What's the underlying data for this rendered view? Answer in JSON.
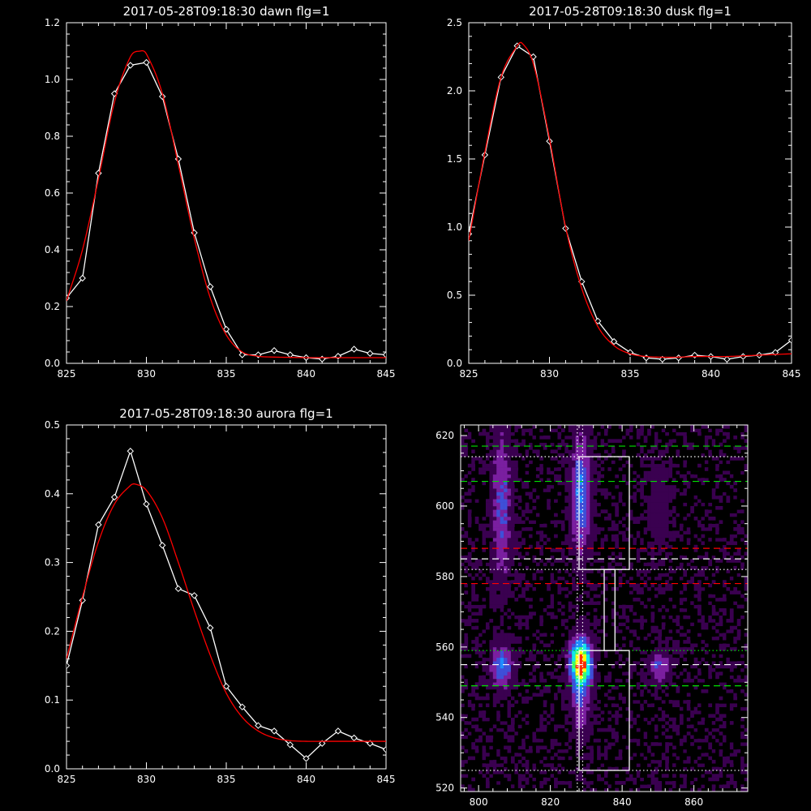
{
  "chart_data": [
    {
      "type": "line",
      "title": "2017-05-28T09:18:30 dawn flg=1",
      "xlabel": "",
      "ylabel": "",
      "xlim": [
        825,
        845
      ],
      "ylim": [
        0,
        1.2
      ],
      "xticks": [
        "825",
        "830",
        "835",
        "840",
        "845"
      ],
      "yticks": [
        "0.0",
        "0.2",
        "0.4",
        "0.6",
        "0.8",
        "1.0",
        "1.2"
      ],
      "series": [
        {
          "color": "#ffffff",
          "markers": "diamond",
          "x": [
            825,
            826,
            827,
            828,
            829,
            830,
            831,
            832,
            833,
            834,
            835,
            836,
            837,
            838,
            839,
            840,
            841,
            842,
            843,
            844,
            845
          ],
          "y": [
            0.23,
            0.3,
            0.67,
            0.95,
            1.05,
            1.06,
            0.94,
            0.72,
            0.46,
            0.27,
            0.12,
            0.03,
            0.03,
            0.045,
            0.03,
            0.02,
            0.015,
            0.025,
            0.05,
            0.035,
            0.03
          ]
        },
        {
          "color": "#ff0000",
          "markers": "none",
          "x": [
            825,
            826,
            827,
            828,
            829,
            829.6,
            830,
            831,
            832,
            833,
            834,
            835,
            836,
            837,
            838,
            839,
            840,
            841,
            842,
            843,
            844,
            845
          ],
          "y": [
            0.22,
            0.4,
            0.65,
            0.92,
            1.08,
            1.1,
            1.09,
            0.95,
            0.7,
            0.44,
            0.23,
            0.1,
            0.04,
            0.025,
            0.022,
            0.021,
            0.02,
            0.02,
            0.02,
            0.02,
            0.02,
            0.02
          ]
        }
      ]
    },
    {
      "type": "line",
      "title": "2017-05-28T09:18:30 dusk flg=1",
      "xlabel": "",
      "ylabel": "",
      "xlim": [
        825,
        845
      ],
      "ylim": [
        0,
        2.5
      ],
      "xticks": [
        "825",
        "830",
        "835",
        "840",
        "845"
      ],
      "yticks": [
        "0.0",
        "0.5",
        "1.0",
        "1.5",
        "2.0",
        "2.5"
      ],
      "series": [
        {
          "color": "#ffffff",
          "markers": "diamond",
          "x": [
            825,
            826,
            827,
            828,
            829,
            830,
            831,
            832,
            833,
            834,
            835,
            836,
            837,
            838,
            839,
            840,
            841,
            842,
            843,
            844,
            845
          ],
          "y": [
            0.95,
            1.53,
            2.1,
            2.33,
            2.25,
            1.63,
            0.99,
            0.6,
            0.31,
            0.16,
            0.08,
            0.04,
            0.03,
            0.04,
            0.06,
            0.05,
            0.03,
            0.05,
            0.06,
            0.08,
            0.17
          ]
        },
        {
          "color": "#ff0000",
          "markers": "none",
          "x": [
            825,
            826,
            827,
            828,
            828.3,
            829,
            830,
            831,
            832,
            833,
            834,
            835,
            836,
            837,
            838,
            839,
            840,
            841,
            842,
            843,
            844,
            845
          ],
          "y": [
            0.9,
            1.55,
            2.1,
            2.33,
            2.35,
            2.2,
            1.65,
            1.0,
            0.55,
            0.27,
            0.13,
            0.07,
            0.05,
            0.045,
            0.045,
            0.05,
            0.05,
            0.05,
            0.055,
            0.06,
            0.065,
            0.07
          ]
        }
      ]
    },
    {
      "type": "line",
      "title": "2017-05-28T09:18:30 aurora flg=1",
      "xlabel": "",
      "ylabel": "",
      "xlim": [
        825,
        845
      ],
      "ylim": [
        0,
        0.5
      ],
      "xticks": [
        "825",
        "830",
        "835",
        "840",
        "845"
      ],
      "yticks": [
        "0.0",
        "0.1",
        "0.2",
        "0.3",
        "0.4",
        "0.5"
      ],
      "series": [
        {
          "color": "#ffffff",
          "markers": "diamond",
          "x": [
            825,
            826,
            827,
            828,
            829,
            830,
            831,
            832,
            833,
            834,
            835,
            836,
            837,
            838,
            839,
            840,
            841,
            842,
            843,
            844,
            845
          ],
          "y": [
            0.15,
            0.245,
            0.355,
            0.395,
            0.462,
            0.385,
            0.325,
            0.262,
            0.252,
            0.205,
            0.12,
            0.09,
            0.063,
            0.055,
            0.035,
            0.015,
            0.037,
            0.055,
            0.045,
            0.037,
            0.028
          ]
        },
        {
          "color": "#ff0000",
          "markers": "none",
          "x": [
            825,
            826,
            827,
            828,
            829,
            829.3,
            830,
            831,
            832,
            833,
            834,
            835,
            836,
            837,
            838,
            839,
            840,
            841,
            842,
            843,
            844,
            845
          ],
          "y": [
            0.16,
            0.25,
            0.33,
            0.385,
            0.412,
            0.414,
            0.405,
            0.365,
            0.3,
            0.23,
            0.165,
            0.11,
            0.075,
            0.055,
            0.045,
            0.041,
            0.04,
            0.04,
            0.04,
            0.04,
            0.04,
            0.04
          ]
        }
      ]
    },
    {
      "type": "heatmap",
      "title": "",
      "xlabel": "",
      "ylabel": "",
      "xlim": [
        795,
        875
      ],
      "ylim": [
        519,
        623
      ],
      "xticks": [
        "800",
        "820",
        "840",
        "860"
      ],
      "yticks": [
        "520",
        "540",
        "560",
        "580",
        "600",
        "620"
      ],
      "colorscale": [
        "#000000",
        "#3a0050",
        "#7a1fa0",
        "#3f4fd8",
        "#1e8cff",
        "#11e8e8",
        "#3cff6a",
        "#ffff00",
        "#ff2a00"
      ],
      "blobs": [
        {
          "x": 828,
          "y": 603,
          "sx": 1.8,
          "sy": 11,
          "amp": 0.42
        },
        {
          "x": 806,
          "y": 600,
          "sx": 1.8,
          "sy": 14,
          "amp": 0.3
        },
        {
          "x": 850,
          "y": 600,
          "sx": 2.2,
          "sy": 10,
          "amp": 0.1
        },
        {
          "x": 828,
          "y": 555,
          "sx": 2.0,
          "sy": 4.5,
          "amp": 1.0
        },
        {
          "x": 806,
          "y": 554,
          "sx": 2.0,
          "sy": 4.0,
          "amp": 0.4
        },
        {
          "x": 850,
          "y": 554,
          "sx": 2.0,
          "sy": 3.0,
          "amp": 0.28
        },
        {
          "x": 828,
          "y": 543,
          "sx": 1.8,
          "sy": 6,
          "amp": 0.25
        }
      ],
      "hlines": [
        {
          "y": 617,
          "color": "#00e000",
          "dash": "dashed"
        },
        {
          "y": 607,
          "color": "#00e000",
          "dash": "dashed"
        },
        {
          "y": 614,
          "color": "#ffffff",
          "dash": "dotted"
        },
        {
          "y": 588,
          "color": "#ff0000",
          "dash": "dashed"
        },
        {
          "y": 585,
          "color": "#ffffff",
          "dash": "dashed"
        },
        {
          "y": 582,
          "color": "#ffffff",
          "dash": "dotted"
        },
        {
          "y": 578,
          "color": "#ff0000",
          "dash": "dashed"
        },
        {
          "y": 559,
          "color": "#00e000",
          "dash": "dotted"
        },
        {
          "y": 555,
          "color": "#ffffff",
          "dash": "dashed"
        },
        {
          "y": 549,
          "color": "#00e000",
          "dash": "dashed"
        },
        {
          "y": 525,
          "color": "#ffffff",
          "dash": "dotted"
        }
      ],
      "vlines": [
        {
          "x": 827.5,
          "color": "#ffffff",
          "dash": "dotted"
        },
        {
          "x": 829,
          "color": "#ffffff",
          "dash": "dotted"
        }
      ],
      "boxes": [
        {
          "x0": 828,
          "x1": 842,
          "y0": 582,
          "y1": 614
        },
        {
          "x0": 835,
          "x1": 838,
          "y0": 559,
          "y1": 582
        },
        {
          "x0": 828,
          "x1": 842,
          "y0": 525,
          "y1": 559
        }
      ]
    }
  ]
}
